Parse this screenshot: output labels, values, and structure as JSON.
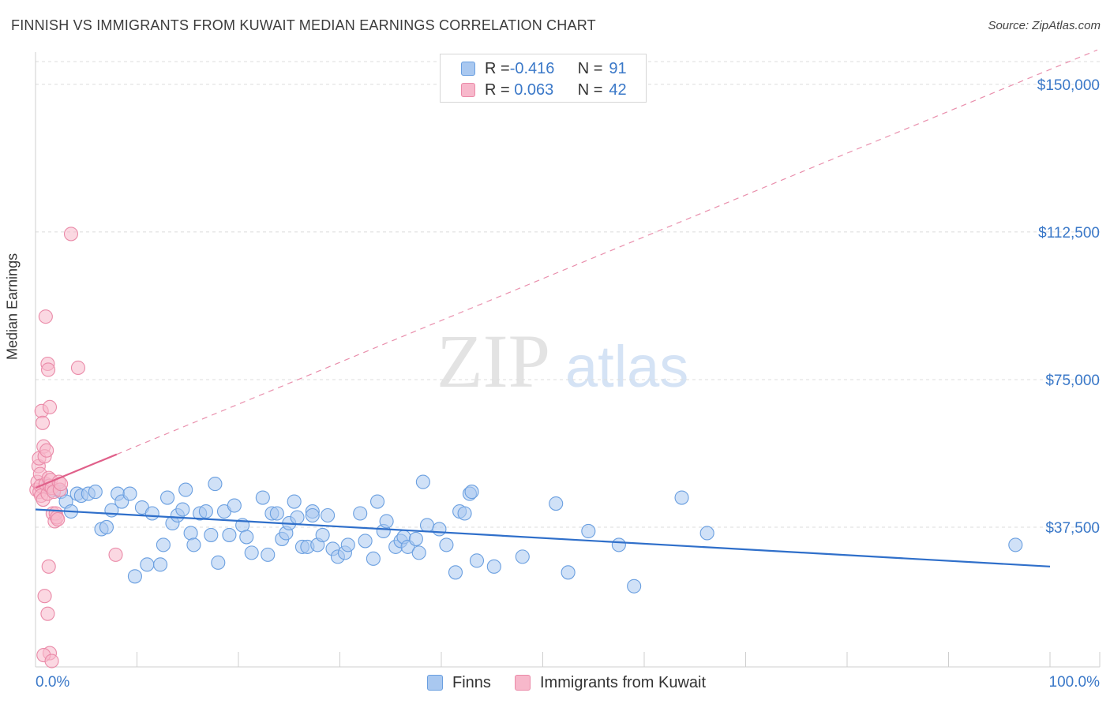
{
  "header": {
    "title": "FINNISH VS IMMIGRANTS FROM KUWAIT MEDIAN EARNINGS CORRELATION CHART",
    "source": "Source: ZipAtlas.com"
  },
  "legend": {
    "rows": [
      {
        "r_label": "R = ",
        "r_value": "-0.416",
        "n_label": "N = ",
        "n_value": "91"
      },
      {
        "r_label": "R = ",
        "r_value": " 0.063",
        "n_label": "N = ",
        "n_value": "42"
      }
    ]
  },
  "watermark": {
    "zip": "ZIP",
    "atlas": "atlas"
  },
  "colors": {
    "finns_fill": "#a9c8f0",
    "finns_stroke": "#6a9fe0",
    "finns_line": "#2f6fca",
    "kuwait_fill": "#f7b8cb",
    "kuwait_stroke": "#ea8aa8",
    "kuwait_line": "#e0608a",
    "tick_label": "#3a78c8"
  },
  "chart_data": {
    "type": "scatter",
    "title": "FINNISH VS IMMIGRANTS FROM KUWAIT MEDIAN EARNINGS CORRELATION CHART",
    "xlabel": "",
    "ylabel": "Median Earnings",
    "x_tick_labels": [
      "0.0%",
      "100.0%"
    ],
    "y_ticks": [
      37500,
      75000,
      112500,
      150000
    ],
    "y_tick_labels": [
      "$37,500",
      "$75,000",
      "$112,500",
      "$150,000"
    ],
    "xlim": [
      0,
      100
    ],
    "ylim": [
      2000,
      156000
    ],
    "grid": true,
    "series": [
      {
        "name": "Finns",
        "r": -0.416,
        "n": 91,
        "trend": {
          "x": [
            0,
            100
          ],
          "y": [
            42000,
            27500
          ]
        },
        "points": [
          [
            1.2,
            48000
          ],
          [
            1.8,
            47000
          ],
          [
            2.5,
            46500
          ],
          [
            3.0,
            44000
          ],
          [
            3.5,
            41500
          ],
          [
            4.1,
            46000
          ],
          [
            4.5,
            45500
          ],
          [
            5.2,
            46000
          ],
          [
            5.9,
            46500
          ],
          [
            6.5,
            37000
          ],
          [
            7.0,
            37500
          ],
          [
            7.5,
            41800
          ],
          [
            8.1,
            46000
          ],
          [
            8.5,
            44000
          ],
          [
            9.3,
            46000
          ],
          [
            9.8,
            25000
          ],
          [
            10.5,
            42500
          ],
          [
            11.0,
            28000
          ],
          [
            11.5,
            41000
          ],
          [
            12.3,
            28000
          ],
          [
            12.6,
            33000
          ],
          [
            13.0,
            45000
          ],
          [
            13.5,
            38500
          ],
          [
            14.0,
            40500
          ],
          [
            14.5,
            42000
          ],
          [
            14.8,
            47000
          ],
          [
            15.3,
            36000
          ],
          [
            15.6,
            33000
          ],
          [
            16.2,
            41000
          ],
          [
            16.8,
            41500
          ],
          [
            17.3,
            35500
          ],
          [
            17.7,
            48500
          ],
          [
            18.0,
            28500
          ],
          [
            18.6,
            41500
          ],
          [
            19.1,
            35500
          ],
          [
            19.6,
            43000
          ],
          [
            20.4,
            38000
          ],
          [
            20.8,
            35000
          ],
          [
            21.3,
            31000
          ],
          [
            22.4,
            45000
          ],
          [
            22.9,
            30500
          ],
          [
            23.3,
            41000
          ],
          [
            23.8,
            41000
          ],
          [
            24.3,
            34500
          ],
          [
            24.7,
            36000
          ],
          [
            25.0,
            38500
          ],
          [
            25.5,
            44000
          ],
          [
            25.8,
            40000
          ],
          [
            26.3,
            32500
          ],
          [
            26.8,
            32500
          ],
          [
            27.3,
            41500
          ],
          [
            27.8,
            33000
          ],
          [
            28.3,
            35500
          ],
          [
            28.8,
            40500
          ],
          [
            29.3,
            32000
          ],
          [
            29.8,
            30000
          ],
          [
            30.5,
            31000
          ],
          [
            30.8,
            33000
          ],
          [
            32.0,
            41000
          ],
          [
            32.5,
            34000
          ],
          [
            33.3,
            29500
          ],
          [
            33.7,
            44000
          ],
          [
            34.3,
            36500
          ],
          [
            34.6,
            39000
          ],
          [
            35.5,
            32500
          ],
          [
            36.0,
            34000
          ],
          [
            36.3,
            35000
          ],
          [
            36.7,
            32500
          ],
          [
            37.5,
            34500
          ],
          [
            37.8,
            31000
          ],
          [
            38.2,
            49000
          ],
          [
            38.6,
            38000
          ],
          [
            39.8,
            37000
          ],
          [
            40.5,
            33000
          ],
          [
            41.4,
            26000
          ],
          [
            41.8,
            41500
          ],
          [
            42.3,
            41000
          ],
          [
            42.8,
            46000
          ],
          [
            43.5,
            29000
          ],
          [
            45.2,
            27500
          ],
          [
            48.0,
            30000
          ],
          [
            51.3,
            43500
          ],
          [
            52.5,
            26000
          ],
          [
            54.5,
            36500
          ],
          [
            57.5,
            33000
          ],
          [
            59.0,
            22500
          ],
          [
            63.7,
            45000
          ],
          [
            66.2,
            36000
          ],
          [
            96.6,
            33000
          ],
          [
            43.0,
            46500
          ],
          [
            27.3,
            40500
          ]
        ]
      },
      {
        "name": "Immigrants from Kuwait",
        "r": 0.063,
        "n": 42,
        "trend": {
          "x": [
            0,
            8
          ],
          "y": [
            47500,
            56000
          ]
        },
        "points": [
          [
            0.1,
            47000
          ],
          [
            0.2,
            49000
          ],
          [
            0.3,
            53000
          ],
          [
            0.35,
            55000
          ],
          [
            0.4,
            46500
          ],
          [
            0.45,
            51000
          ],
          [
            0.5,
            48000
          ],
          [
            0.55,
            45500
          ],
          [
            0.6,
            67000
          ],
          [
            0.7,
            64000
          ],
          [
            0.75,
            44500
          ],
          [
            0.8,
            58000
          ],
          [
            0.9,
            55500
          ],
          [
            1.0,
            48500
          ],
          [
            1.1,
            57000
          ],
          [
            1.2,
            46000
          ],
          [
            1.3,
            50000
          ],
          [
            1.4,
            48000
          ],
          [
            1.5,
            49500
          ],
          [
            1.6,
            47500
          ],
          [
            1.7,
            41000
          ],
          [
            1.8,
            46500
          ],
          [
            1.9,
            39000
          ],
          [
            2.0,
            41000
          ],
          [
            2.1,
            40000
          ],
          [
            2.2,
            39500
          ],
          [
            2.3,
            49000
          ],
          [
            2.4,
            47000
          ],
          [
            2.5,
            48500
          ],
          [
            3.5,
            112000
          ],
          [
            1.0,
            91000
          ],
          [
            1.2,
            79000
          ],
          [
            1.25,
            77500
          ],
          [
            4.2,
            78000
          ],
          [
            1.4,
            68000
          ],
          [
            1.3,
            27500
          ],
          [
            0.9,
            20000
          ],
          [
            1.2,
            15500
          ],
          [
            1.4,
            5500
          ],
          [
            0.8,
            5000
          ],
          [
            1.6,
            3500
          ],
          [
            7.9,
            30500
          ]
        ]
      }
    ]
  }
}
